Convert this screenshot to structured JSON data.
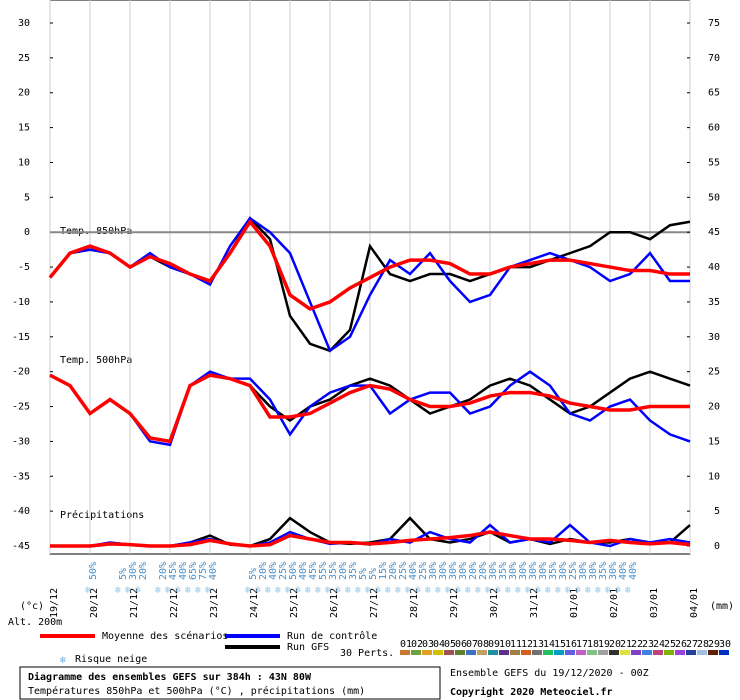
{
  "chart_data": {
    "type": "line",
    "labels": {
      "t850": "Temp. 850hPa",
      "t500": "Temp. 500hPa",
      "precip": "Précipitations",
      "yunit": "(°c)",
      "y2unit": "(mm)",
      "alt": "Alt. 200m",
      "snow": "Risque neige",
      "perts": "30 Perts."
    },
    "footer": {
      "title": "Diagramme des ensembles GEFS sur 384h : 43N 80W",
      "subtitle": "Températures 850hPa et 500hPa (°C) , précipitations (mm)",
      "run": "Ensemble GEFS du 19/12/2020 - 00Z",
      "copyright": "Copyright 2020 Meteociel.fr"
    },
    "xlim": [
      0,
      384
    ],
    "xticks": [
      {
        "value": 0,
        "label": "19/12"
      },
      {
        "value": 24,
        "label": "20/12"
      },
      {
        "value": 48,
        "label": "21/12"
      },
      {
        "value": 72,
        "label": "22/12"
      },
      {
        "value": 96,
        "label": "23/12"
      },
      {
        "value": 120,
        "label": "24/12"
      },
      {
        "value": 144,
        "label": "25/12"
      },
      {
        "value": 168,
        "label": "26/12"
      },
      {
        "value": 192,
        "label": "27/12"
      },
      {
        "value": 216,
        "label": "28/12"
      },
      {
        "value": 240,
        "label": "29/12"
      },
      {
        "value": 264,
        "label": "30/12"
      },
      {
        "value": 288,
        "label": "31/12"
      },
      {
        "value": 312,
        "label": "01/01"
      },
      {
        "value": 336,
        "label": "02/01"
      },
      {
        "value": 360,
        "label": "03/01"
      },
      {
        "value": 384,
        "label": "04/01"
      }
    ],
    "ylim": [
      -45,
      30
    ],
    "yticks": [
      30,
      25,
      20,
      15,
      10,
      5,
      0,
      -5,
      -10,
      -15,
      -20,
      -25,
      -30,
      -35,
      -40,
      -45
    ],
    "y2lim": [
      0,
      75
    ],
    "y2ticks": [
      75,
      70,
      65,
      60,
      55,
      50,
      45,
      40,
      35,
      30,
      25,
      20,
      15,
      10,
      5,
      0
    ],
    "x": [
      0,
      12,
      24,
      36,
      48,
      60,
      72,
      84,
      96,
      108,
      120,
      132,
      144,
      156,
      168,
      180,
      192,
      204,
      216,
      228,
      240,
      252,
      264,
      276,
      288,
      300,
      312,
      324,
      336,
      348,
      360,
      372,
      384
    ],
    "series": [
      {
        "name": "Moyenne des scénarios",
        "color": "#ff0000",
        "values": [
          -6.5,
          -3,
          -2,
          -3,
          -5,
          -3.5,
          -4.5,
          -6,
          -7,
          -3,
          1.5,
          -2,
          -9,
          -11,
          -10,
          -8,
          -6.5,
          -5,
          -4,
          -4,
          -4.5,
          -6,
          -6,
          -5,
          -4.5,
          -4,
          -4,
          -4.5,
          -5,
          -5.5,
          -5.5,
          -6,
          -6
        ],
        "values_500": [
          -20.5,
          -22,
          -26,
          -24,
          -26,
          -29.5,
          -30,
          -22,
          -20.5,
          -21,
          -22,
          -26.5,
          -26.5,
          -26,
          -24.5,
          -23,
          -22,
          -22.5,
          -24,
          -25,
          -25,
          -24.5,
          -23.5,
          -23,
          -23,
          -23.5,
          -24.5,
          -25,
          -25.5,
          -25.5,
          -25,
          -25,
          -25
        ],
        "values_precip": [
          0,
          0,
          0,
          0.3,
          0.2,
          0,
          0,
          0.2,
          0.8,
          0.3,
          0,
          0.2,
          1.5,
          1,
          0.5,
          0.5,
          0.3,
          0.5,
          0.8,
          1,
          1.2,
          1.5,
          2,
          1.5,
          1,
          1,
          0.8,
          0.5,
          0.8,
          0.5,
          0.3,
          0.5,
          0.2
        ]
      },
      {
        "name": "Run de contrôle",
        "color": "#0000ff",
        "values": [
          -6.5,
          -3,
          -2.5,
          -3,
          -5,
          -3,
          -5,
          -6,
          -7.5,
          -2,
          2,
          0,
          -3,
          -10,
          -17,
          -15,
          -9,
          -4,
          -6,
          -3,
          -7,
          -10,
          -9,
          -5,
          -4,
          -3,
          -4,
          -5,
          -7,
          -6,
          -3,
          -7,
          -7
        ],
        "values_500": [
          -20.5,
          -22,
          -26,
          -24,
          -26,
          -30,
          -30.5,
          -22,
          -20,
          -21,
          -21,
          -24,
          -29,
          -25,
          -23,
          -22,
          -22,
          -26,
          -24,
          -23,
          -23,
          -26,
          -25,
          -22,
          -20,
          -22,
          -26,
          -27,
          -25,
          -24,
          -27,
          -29,
          -30
        ],
        "values_precip": [
          0,
          0,
          0,
          0.5,
          0.2,
          0,
          0,
          0.5,
          1,
          0.3,
          0,
          0.5,
          2,
          1,
          0.3,
          0.5,
          0.2,
          1,
          0.5,
          2,
          1,
          0.5,
          3,
          0.5,
          1,
          0.5,
          3,
          0.5,
          0,
          1,
          0.5,
          1,
          0.5
        ]
      },
      {
        "name": "Run GFS",
        "color": "#000000",
        "values": [
          -6.5,
          -3,
          -2.5,
          -3,
          -5,
          -3.5,
          -5,
          -6,
          -7,
          -3,
          2,
          -1,
          -12,
          -16,
          -17,
          -14,
          -2,
          -6,
          -7,
          -6,
          -6,
          -7,
          -6,
          -5,
          -5,
          -4,
          -3,
          -2,
          0,
          0,
          -1,
          1,
          1.5
        ],
        "values_500": [
          -20.5,
          -22,
          -26,
          -24,
          -26,
          -29.5,
          -30,
          -22,
          -20.5,
          -21,
          -22,
          -25,
          -27,
          -25,
          -24,
          -22,
          -21,
          -22,
          -24,
          -26,
          -25,
          -24,
          -22,
          -21,
          -22,
          -24,
          -26,
          -25,
          -23,
          -21,
          -20,
          -21,
          -22
        ],
        "values_precip": [
          0,
          0,
          0,
          0.3,
          0.2,
          0,
          0,
          0.5,
          1.5,
          0.2,
          0,
          1,
          4,
          2,
          0.5,
          0.3,
          0.5,
          1,
          4,
          1,
          0.5,
          1,
          2,
          0.5,
          1,
          0.3,
          1,
          0.5,
          0.5,
          1,
          0.5,
          0.5,
          3
        ]
      }
    ],
    "snow_risk": {
      "x": [
        24,
        42,
        48,
        54,
        66,
        72,
        78,
        84,
        90,
        96,
        120,
        126,
        132,
        138,
        144,
        150,
        156,
        162,
        168,
        174,
        180,
        186,
        192,
        198,
        204,
        210,
        216,
        222,
        228,
        234,
        240,
        246,
        252,
        258,
        264,
        270,
        276,
        282,
        288,
        294,
        300,
        306,
        312,
        318,
        324,
        330,
        336,
        342,
        348
      ],
      "labels": [
        "50%",
        "5%",
        "30%",
        "20%",
        "20%",
        "45%",
        "40%",
        "65%",
        "75%",
        "40%",
        "5%",
        "20%",
        "40%",
        "25%",
        "50%",
        "40%",
        "45%",
        "55%",
        "35%",
        "20%",
        "35%",
        "5%",
        "5%",
        "15%",
        "20%",
        "25%",
        "40%",
        "25%",
        "30%",
        "30%",
        "30%",
        "30%",
        "20%",
        "20%",
        "30%",
        "35%",
        "30%",
        "30%",
        "30%",
        "30%",
        "35%",
        "30%",
        "25%",
        "30%",
        "30%",
        "35%",
        "30%",
        "40%",
        "40%"
      ]
    },
    "perturbations": {
      "labels": [
        "01",
        "02",
        "03",
        "04",
        "05",
        "06",
        "07",
        "08",
        "09",
        "10",
        "11",
        "12",
        "13",
        "14",
        "15",
        "16",
        "17",
        "18",
        "19",
        "20",
        "21",
        "22",
        "23",
        "24",
        "25",
        "26",
        "27",
        "28",
        "29",
        "30"
      ],
      "colors": [
        "#c87830",
        "#70a040",
        "#e0a020",
        "#d0c000",
        "#a05050",
        "#608030",
        "#4070c0",
        "#c0a060",
        "#2090a0",
        "#603090",
        "#a08040",
        "#d06020",
        "#707070",
        "#20c060",
        "#00a0c0",
        "#6060e0",
        "#c060c0",
        "#80c080",
        "#a0a0a0",
        "#303030",
        "#e0e040",
        "#8040c0",
        "#4080e0",
        "#c04080",
        "#80b000",
        "#a040e0",
        "#2040a0",
        "#a0c0e0",
        "#602000",
        "#0030c0"
      ]
    }
  }
}
